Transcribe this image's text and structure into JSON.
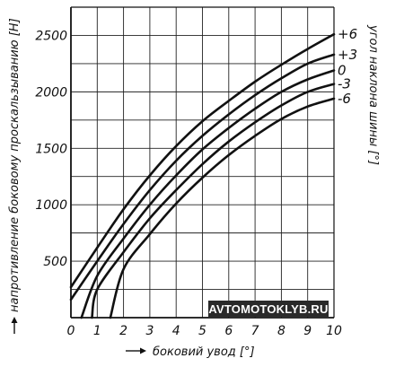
{
  "chart_data": {
    "type": "line",
    "xlabel": "боковий увод [°]",
    "ylabel": "напротивление боковому проскальзыванию [Н]",
    "xlim": [
      0,
      10
    ],
    "ylim": [
      0,
      2750
    ],
    "x_ticks": [
      "0",
      "1",
      "2",
      "3",
      "4",
      "5",
      "6",
      "7",
      "8",
      "9",
      "10"
    ],
    "y_ticks": [
      "500",
      "1000",
      "1500",
      "2000",
      "2500"
    ],
    "grid": true,
    "legend_title": "угол наклона шины [°]",
    "series": [
      {
        "name": "+6",
        "x": [
          0,
          1,
          2,
          3,
          4,
          5,
          6,
          7,
          8,
          9,
          10
        ],
        "y": [
          270,
          620,
          960,
          1260,
          1520,
          1740,
          1920,
          2090,
          2240,
          2380,
          2510
        ]
      },
      {
        "name": "+3",
        "x": [
          0,
          1,
          2,
          3,
          4,
          5,
          6,
          7,
          8,
          9,
          10
        ],
        "y": [
          160,
          500,
          830,
          1130,
          1390,
          1610,
          1800,
          1970,
          2120,
          2250,
          2330
        ]
      },
      {
        "name": "0",
        "x": [
          0.4,
          1,
          2,
          3,
          4,
          5,
          6,
          7,
          8,
          9,
          10
        ],
        "y": [
          0,
          370,
          700,
          1000,
          1260,
          1490,
          1680,
          1850,
          2000,
          2110,
          2190
        ]
      },
      {
        "name": "-3",
        "x": [
          0.8,
          1,
          2,
          3,
          4,
          5,
          6,
          7,
          8,
          9,
          10
        ],
        "y": [
          0,
          250,
          580,
          880,
          1130,
          1360,
          1560,
          1730,
          1880,
          2000,
          2070
        ]
      },
      {
        "name": "-6",
        "x": [
          1.5,
          2,
          3,
          4,
          5,
          6,
          7,
          8,
          9,
          10
        ],
        "y": [
          0,
          430,
          740,
          1010,
          1240,
          1440,
          1610,
          1760,
          1870,
          1940
        ]
      }
    ]
  },
  "watermark": {
    "text": "AVTOMOTOKLYB.RU",
    "background": "#2a2a2a"
  },
  "colors": {
    "ink": "#111111",
    "grid": "#222222",
    "paper": "#ffffff"
  }
}
